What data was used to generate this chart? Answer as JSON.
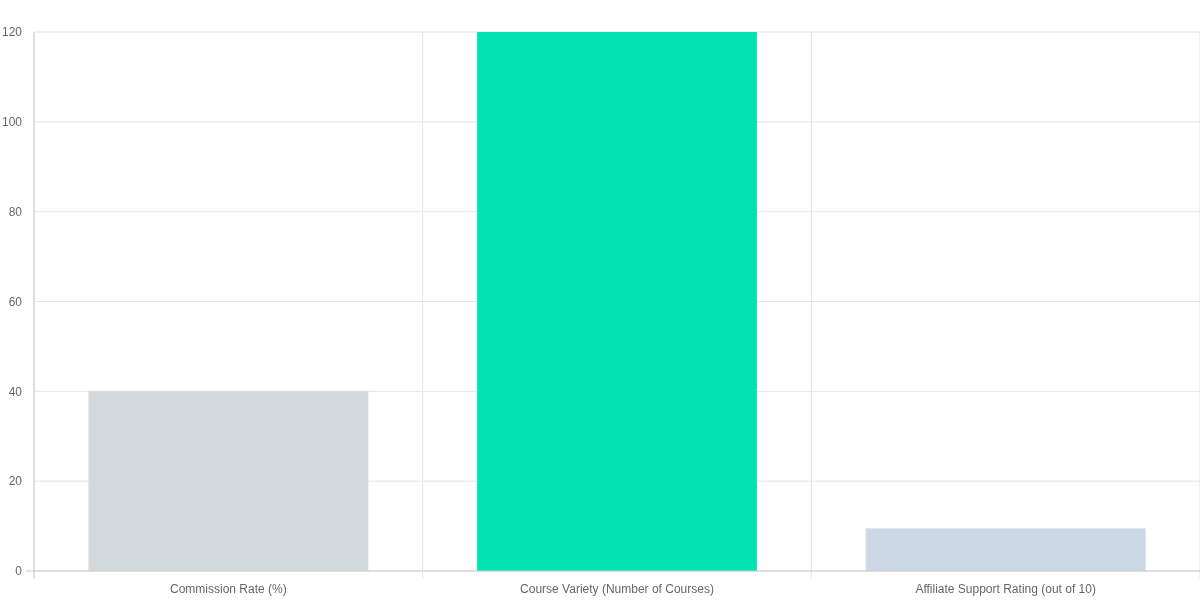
{
  "chart_data": {
    "type": "bar",
    "categories": [
      "Commission Rate (%)",
      "Course Variety (Number of Courses)",
      "Affiliate Support Rating (out of 10)"
    ],
    "values": [
      40,
      120,
      9.5
    ],
    "colors": [
      "#d1d9dc",
      "#00e4b3",
      "#cdd8e6"
    ],
    "ylim": [
      0,
      120
    ],
    "yticks": [
      0,
      20,
      40,
      60,
      80,
      100,
      120
    ],
    "grid": true
  }
}
